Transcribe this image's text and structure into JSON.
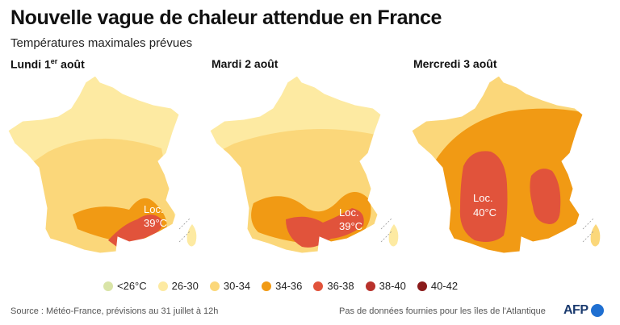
{
  "title": "Nouvelle vague de chaleur attendue en France",
  "subtitle": "Températures maximales prévues",
  "days": [
    {
      "label": "Lundi 1",
      "label_sup": "er",
      "label_rest": " août",
      "loc_line1": "Loc.",
      "loc_line2": "39°C"
    },
    {
      "label": "Mardi 2 août",
      "loc_line1": "Loc.",
      "loc_line2": "39°C"
    },
    {
      "label": "Mercredi 3 août",
      "loc_line1": "Loc.",
      "loc_line2": "40°C"
    }
  ],
  "legend": [
    {
      "label": "<26°C",
      "color": "#d9e4a7"
    },
    {
      "label": "26-30",
      "color": "#fdeaa2"
    },
    {
      "label": "30-34",
      "color": "#fbd77a"
    },
    {
      "label": "34-36",
      "color": "#f19a14"
    },
    {
      "label": "36-38",
      "color": "#e1533b"
    },
    {
      "label": "38-40",
      "color": "#b8312b"
    },
    {
      "label": "40-42",
      "color": "#8a1b1b"
    }
  ],
  "source": "Source : Météo-France, prévisions au 31 juillet à 12h",
  "note": "Pas de données fournies pour les îles de l'Atlantique",
  "logo": "AFP"
}
